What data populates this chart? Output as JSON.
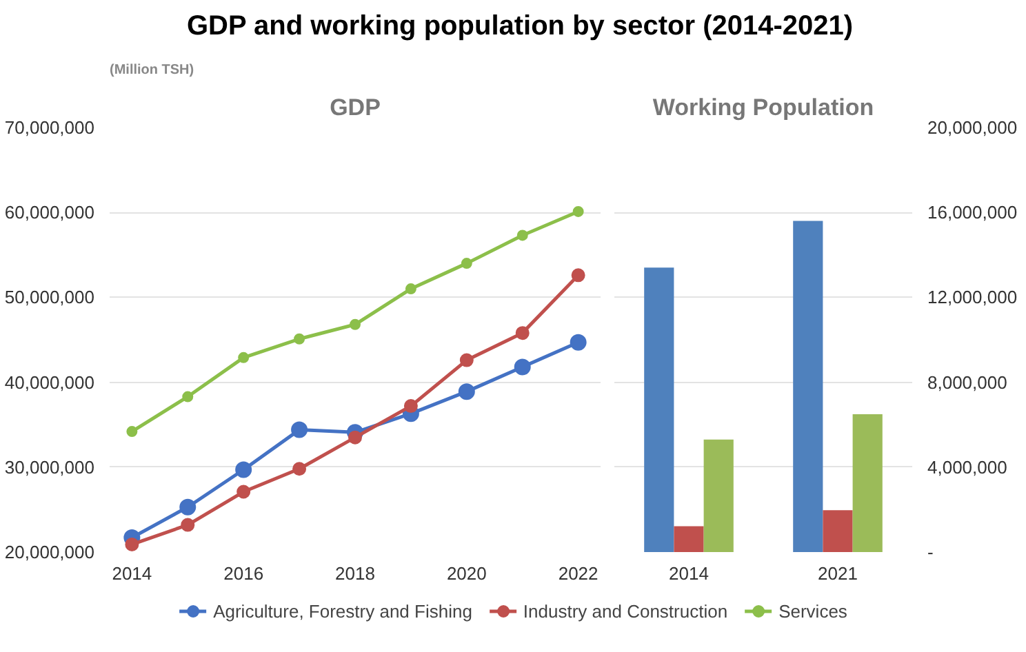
{
  "chart_data": [
    {
      "type": "line",
      "title": "GDP and working population by sector (2014-2021)",
      "subtitle": "GDP",
      "ylabel": "(Million TSH)",
      "x": [
        2014,
        2015,
        2016,
        2017,
        2018,
        2019,
        2020,
        2021,
        2022
      ],
      "xlim": [
        2013.6,
        2022.4
      ],
      "xticks": [
        2014,
        2016,
        2018,
        2020,
        2022
      ],
      "ylim": [
        20000000,
        70000000
      ],
      "yticks": [
        {
          "value": 20000000,
          "label": "20,000,000"
        },
        {
          "value": 30000000,
          "label": "30,000,000"
        },
        {
          "value": 40000000,
          "label": "40,000,000"
        },
        {
          "value": 50000000,
          "label": "50,000,000"
        },
        {
          "value": 60000000,
          "label": "60,000,000"
        },
        {
          "value": 70000000,
          "label": "70,000,000"
        }
      ],
      "series": [
        {
          "name": "Agriculture, Forestry and Fishing",
          "color": "#4472c4",
          "values": [
            21700000,
            25300000,
            29700000,
            34400000,
            34100000,
            36300000,
            38900000,
            41800000,
            44700000
          ]
        },
        {
          "name": "Industry and Construction",
          "color": "#c0504d",
          "values": [
            20900000,
            23200000,
            27100000,
            29800000,
            33500000,
            37200000,
            42600000,
            45800000,
            52600000
          ]
        },
        {
          "name": "Services",
          "color": "#8cbf4a",
          "values": [
            34200000,
            38300000,
            42900000,
            45100000,
            46800000,
            51000000,
            54000000,
            57300000,
            60100000
          ]
        }
      ],
      "marker": "circle",
      "grid": "y",
      "legend": "bottom"
    },
    {
      "type": "bar",
      "title": "Working Population",
      "categories": [
        "2014",
        "2021"
      ],
      "ylim": [
        0,
        20000000
      ],
      "yticks": [
        {
          "value": 0,
          "label": "-"
        },
        {
          "value": 4000000,
          "label": "4,000,000"
        },
        {
          "value": 8000000,
          "label": "8,000,000"
        },
        {
          "value": 12000000,
          "label": "12,000,000"
        },
        {
          "value": 16000000,
          "label": "16,000,000"
        },
        {
          "value": 20000000,
          "label": "20,000,000"
        }
      ],
      "series": [
        {
          "color": "#4f81bd",
          "values": [
            13400000,
            15600000
          ]
        },
        {
          "color": "#c0504d",
          "values": [
            1220000,
            1970000
          ]
        },
        {
          "color": "#9bbb59",
          "values": [
            5300000,
            6490000
          ]
        }
      ],
      "grid": "y"
    }
  ]
}
